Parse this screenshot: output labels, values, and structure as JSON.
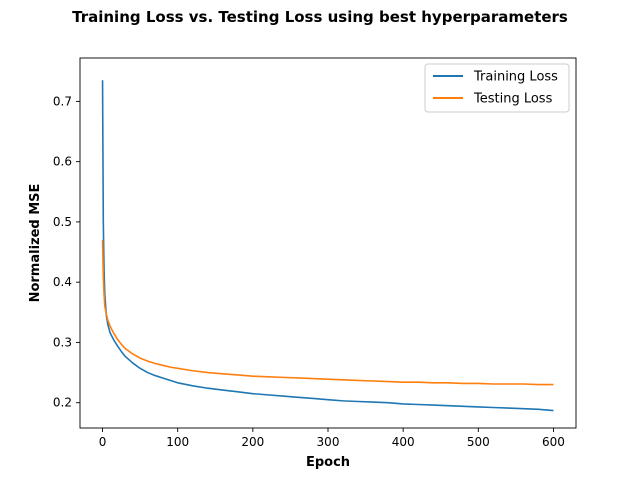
{
  "chart_data": {
    "type": "line",
    "title": "Training Loss vs. Testing Loss using best hyperparameters",
    "xlabel": "Epoch",
    "ylabel": "Normalized MSE",
    "xlim": [
      -30,
      630
    ],
    "ylim": [
      0.158,
      0.772
    ],
    "xticks": [
      0,
      100,
      200,
      300,
      400,
      500,
      600
    ],
    "yticks": [
      0.2,
      0.3,
      0.4,
      0.5,
      0.6,
      0.7
    ],
    "grid": false,
    "legend": "top-right",
    "x": [
      0,
      1,
      2,
      3,
      5,
      7,
      10,
      15,
      20,
      25,
      30,
      40,
      50,
      60,
      70,
      80,
      90,
      100,
      120,
      140,
      160,
      180,
      200,
      220,
      240,
      260,
      280,
      300,
      320,
      340,
      360,
      380,
      400,
      420,
      440,
      460,
      480,
      500,
      520,
      540,
      560,
      580,
      600
    ],
    "series": [
      {
        "name": "Training Loss",
        "color": "#1f77b4",
        "values": [
          0.735,
          0.5,
          0.42,
          0.38,
          0.345,
          0.33,
          0.316,
          0.304,
          0.294,
          0.285,
          0.277,
          0.266,
          0.257,
          0.25,
          0.245,
          0.241,
          0.237,
          0.233,
          0.228,
          0.224,
          0.221,
          0.218,
          0.215,
          0.213,
          0.211,
          0.209,
          0.207,
          0.205,
          0.203,
          0.202,
          0.201,
          0.2,
          0.198,
          0.197,
          0.196,
          0.195,
          0.194,
          0.193,
          0.192,
          0.191,
          0.19,
          0.189,
          0.187
        ]
      },
      {
        "name": "Testing Loss",
        "color": "#ff7f0e",
        "values": [
          0.47,
          0.41,
          0.38,
          0.36,
          0.347,
          0.337,
          0.327,
          0.315,
          0.305,
          0.297,
          0.29,
          0.281,
          0.274,
          0.269,
          0.265,
          0.262,
          0.259,
          0.257,
          0.253,
          0.25,
          0.248,
          0.246,
          0.244,
          0.243,
          0.242,
          0.241,
          0.24,
          0.239,
          0.238,
          0.237,
          0.236,
          0.235,
          0.234,
          0.234,
          0.233,
          0.233,
          0.232,
          0.232,
          0.231,
          0.231,
          0.231,
          0.23,
          0.23
        ]
      }
    ]
  }
}
